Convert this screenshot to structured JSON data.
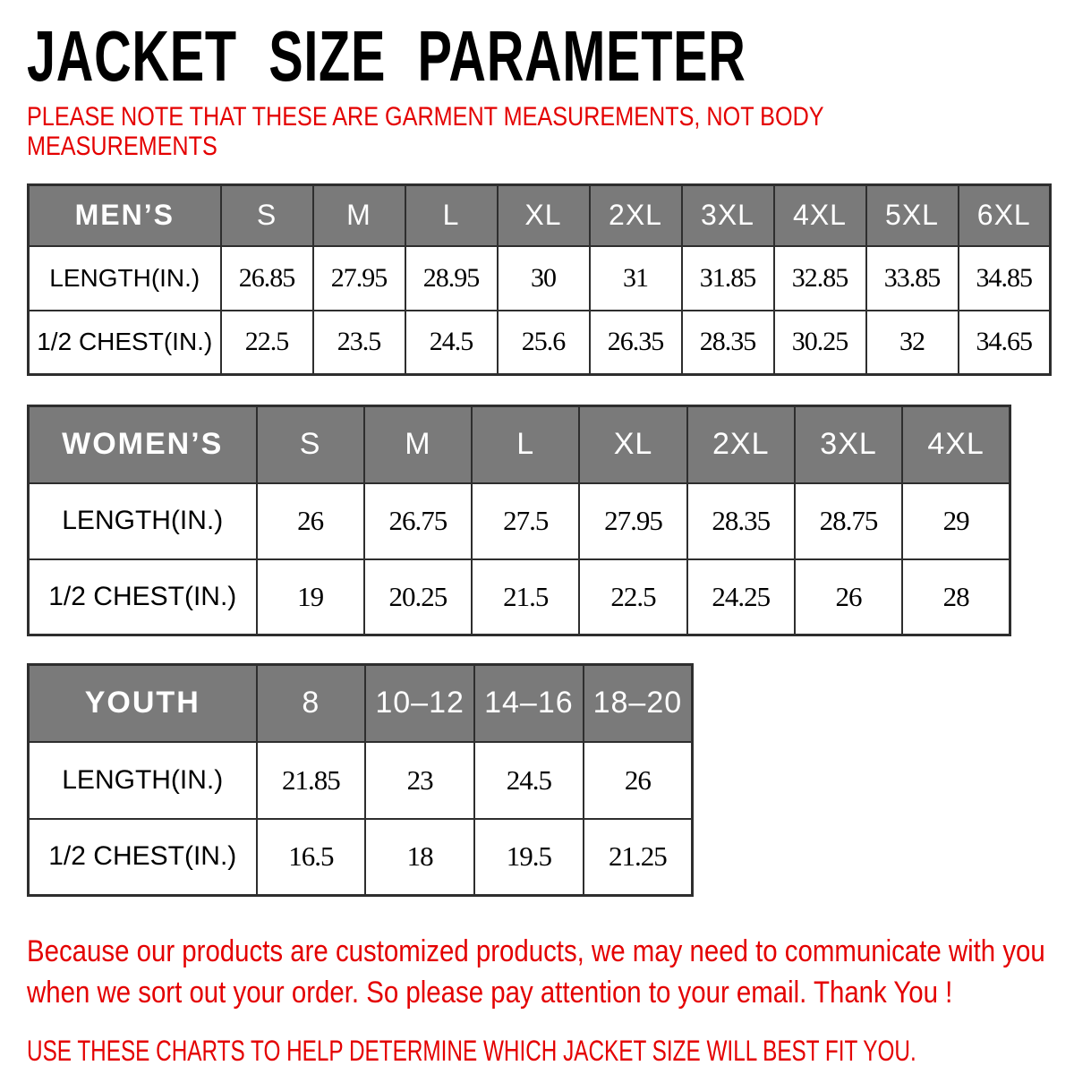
{
  "page": {
    "title": "JACKET SIZE PARAMETER",
    "note_lines": [
      "PLEASE NOTE THAT THESE ARE GARMENT MEASUREMENTS, NOT BODY",
      "MEASUREMENTS"
    ],
    "footer_lines": [
      "Because our products are customized products, we may need to communicate with you",
      "when we sort out your order. So please pay attention to your email. Thank You !"
    ],
    "usage_line": "USE THESE CHARTS TO HELP DETERMINE WHICH JACKET SIZE WILL BEST FIT YOU."
  },
  "colors": {
    "accent_red": "#e40000",
    "header_bg": "#7a7a7a",
    "header_text": "#ffffff",
    "table_border": "#2e2e2e",
    "title_text": "#000000"
  },
  "chart_data": [
    {
      "type": "table",
      "title": "MEN’S",
      "columns": [
        "S",
        "M",
        "L",
        "XL",
        "2XL",
        "3XL",
        "4XL",
        "5XL",
        "6XL"
      ],
      "rows": [
        {
          "label": "LENGTH(IN.)",
          "values": [
            "26.85",
            "27.95",
            "28.95",
            "30",
            "31",
            "31.85",
            "32.85",
            "33.85",
            "34.85"
          ]
        },
        {
          "label": "1/2 CHEST(IN.)",
          "values": [
            "22.5",
            "23.5",
            "24.5",
            "25.6",
            "26.35",
            "28.35",
            "30.25",
            "32",
            "34.65"
          ]
        }
      ]
    },
    {
      "type": "table",
      "title": "WOMEN’S",
      "columns": [
        "S",
        "M",
        "L",
        "XL",
        "2XL",
        "3XL",
        "4XL"
      ],
      "rows": [
        {
          "label": "LENGTH(IN.)",
          "values": [
            "26",
            "26.75",
            "27.5",
            "27.95",
            "28.35",
            "28.75",
            "29"
          ]
        },
        {
          "label": "1/2 CHEST(IN.)",
          "values": [
            "19",
            "20.25",
            "21.5",
            "22.5",
            "24.25",
            "26",
            "28"
          ]
        }
      ]
    },
    {
      "type": "table",
      "title": "YOUTH",
      "columns": [
        "8",
        "10–12",
        "14–16",
        "18–20"
      ],
      "rows": [
        {
          "label": "LENGTH(IN.)",
          "values": [
            "21.85",
            "23",
            "24.5",
            "26"
          ]
        },
        {
          "label": "1/2 CHEST(IN.)",
          "values": [
            "16.5",
            "18",
            "19.5",
            "21.25"
          ]
        }
      ]
    }
  ]
}
